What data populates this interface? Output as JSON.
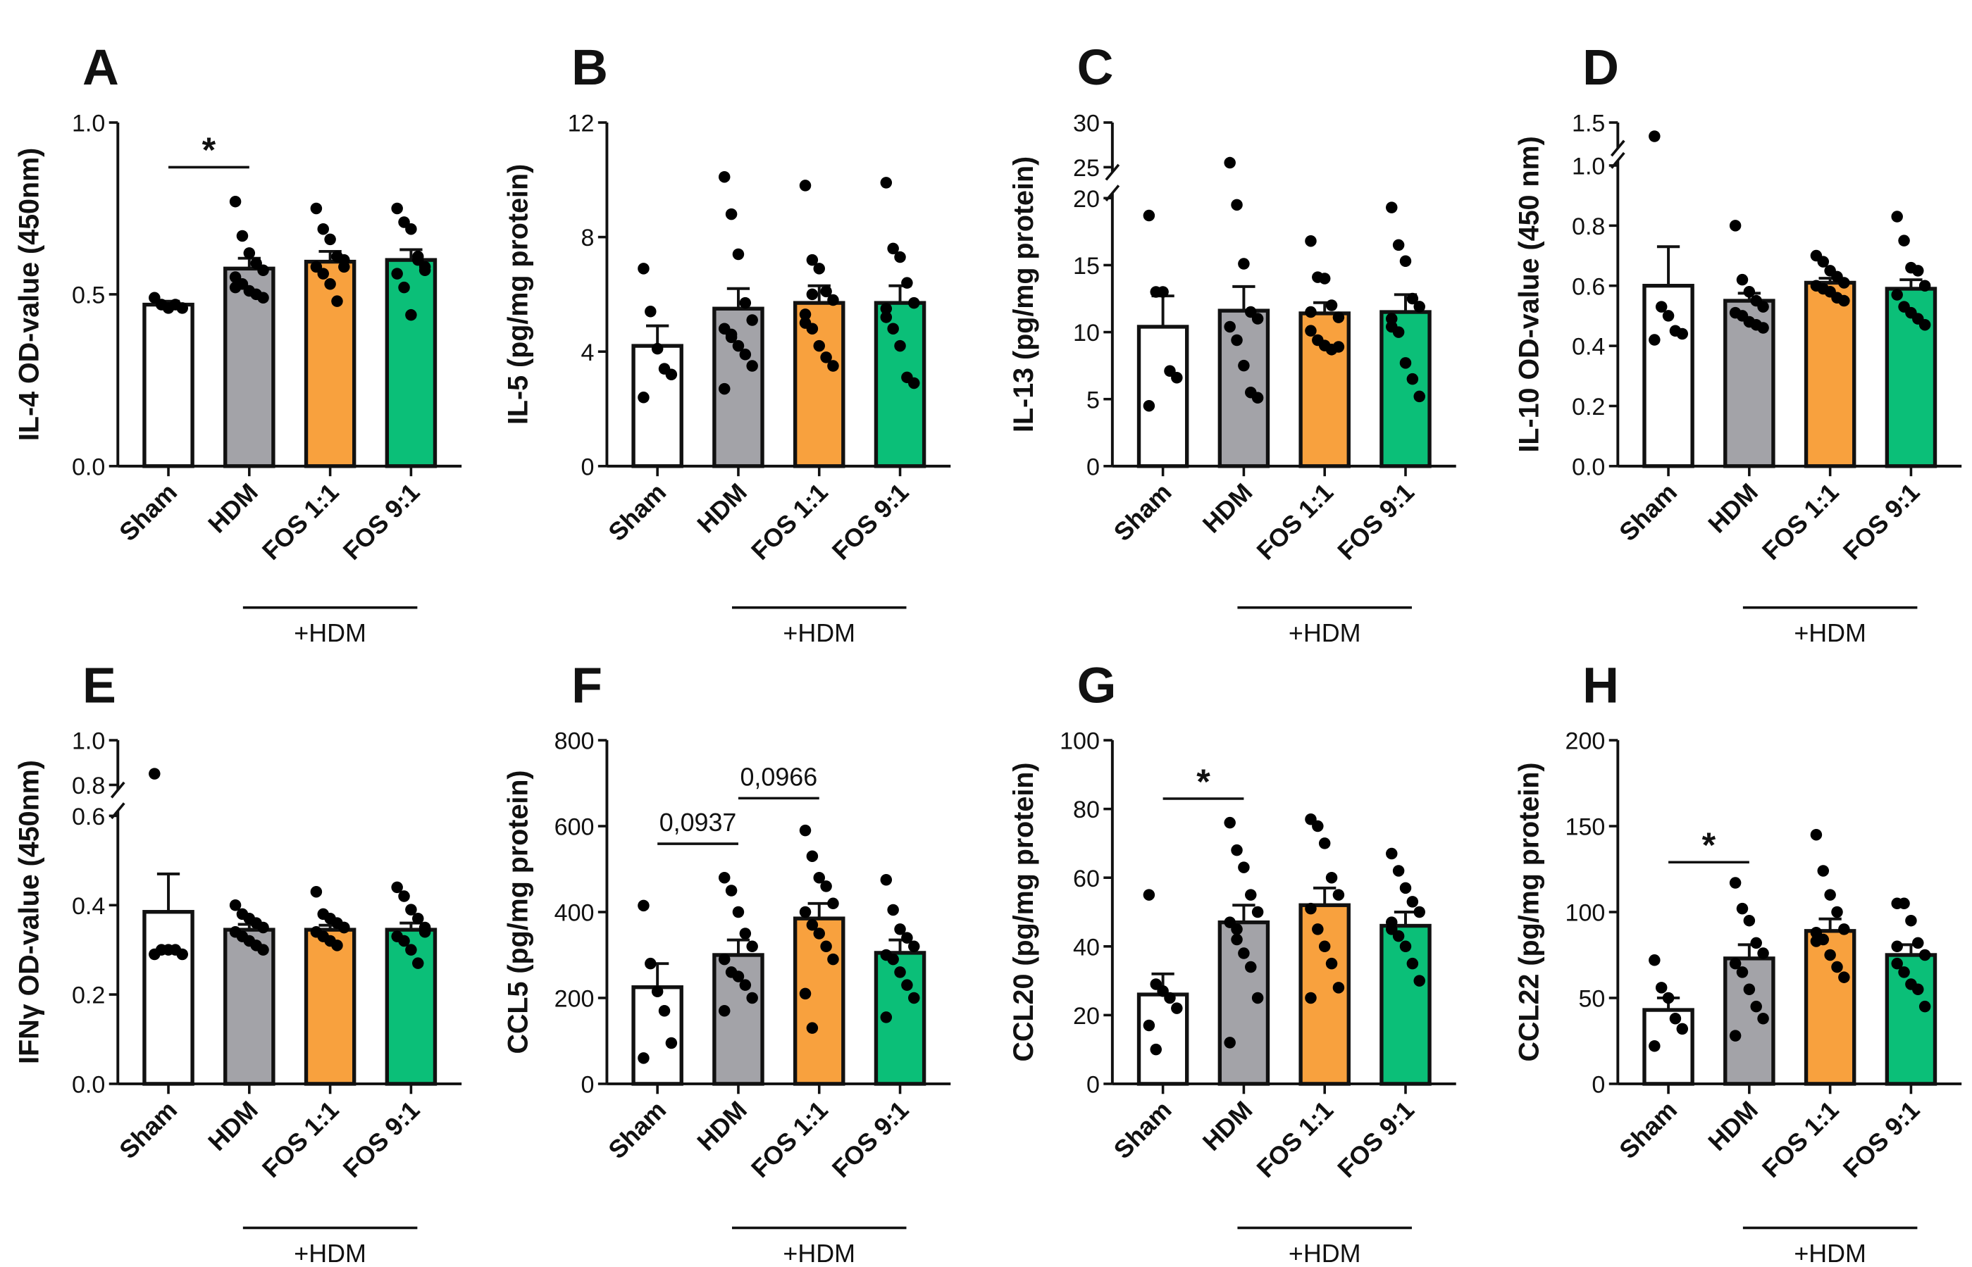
{
  "chart_data": [
    {
      "type": "bar",
      "panel": "A",
      "ylabel": "IL-4 OD-value (450nm)",
      "ylim": [
        0,
        1.0
      ],
      "yticks": [
        "0.0",
        "0.5",
        "1.0"
      ],
      "ytick_values": [
        0,
        0.5,
        1.0
      ],
      "categories": [
        "Sham",
        "HDM",
        "FOS 1:1",
        "FOS 9:1"
      ],
      "group_label": "+HDM",
      "means": [
        0.47,
        0.575,
        0.595,
        0.6
      ],
      "sem": [
        0.01,
        0.03,
        0.03,
        0.03
      ],
      "points": [
        [
          0.49,
          0.47,
          0.46,
          0.47,
          0.46
        ],
        [
          0.77,
          0.67,
          0.62,
          0.59,
          0.57,
          0.55,
          0.53,
          0.51,
          0.5,
          0.49,
          0.52
        ],
        [
          0.75,
          0.69,
          0.66,
          0.61,
          0.6,
          0.58,
          0.56,
          0.53,
          0.48,
          0.58
        ],
        [
          0.75,
          0.71,
          0.69,
          0.61,
          0.58,
          0.56,
          0.52,
          0.44,
          0.6,
          0.57
        ]
      ],
      "annotations": [
        {
          "from": 0,
          "to": 1,
          "y": 0.87,
          "text": "*"
        }
      ]
    },
    {
      "type": "bar",
      "panel": "B",
      "ylabel": "IL-5 (pg/mg protein)",
      "ylim": [
        0,
        12
      ],
      "yticks": [
        "0",
        "4",
        "8",
        "12"
      ],
      "ytick_values": [
        0,
        4,
        8,
        12
      ],
      "categories": [
        "Sham",
        "HDM",
        "FOS 1:1",
        "FOS 9:1"
      ],
      "group_label": "+HDM",
      "means": [
        4.2,
        5.5,
        5.7,
        5.7
      ],
      "sem": [
        0.7,
        0.7,
        0.6,
        0.6
      ],
      "points": [
        [
          6.9,
          5.4,
          4.1,
          3.4,
          3.2,
          2.4
        ],
        [
          10.1,
          8.8,
          7.4,
          5.7,
          5.1,
          4.8,
          4.5,
          4.2,
          3.9,
          3.5,
          2.7,
          4.6
        ],
        [
          9.8,
          7.2,
          6.9,
          6.1,
          5.8,
          5.3,
          4.8,
          4.2,
          3.8,
          3.5,
          5.0,
          6.0
        ],
        [
          9.9,
          7.6,
          7.3,
          6.4,
          5.7,
          5.2,
          4.8,
          4.2,
          3.1,
          2.9,
          5.5
        ]
      ],
      "annotations": []
    },
    {
      "type": "bar",
      "panel": "C",
      "ylabel": "IL-13 (pg/mg protein)",
      "ylim": [
        0,
        30
      ],
      "axis_break": [
        20,
        25
      ],
      "yticks": [
        "0",
        "5",
        "10",
        "15",
        "20",
        "25",
        "30"
      ],
      "ytick_values": [
        0,
        5,
        10,
        15,
        20,
        25,
        30
      ],
      "categories": [
        "Sham",
        "HDM",
        "FOS 1:1",
        "FOS 9:1"
      ],
      "group_label": "+HDM",
      "means": [
        10.4,
        11.6,
        11.4,
        11.5
      ],
      "sem": [
        2.3,
        1.8,
        0.8,
        1.3
      ],
      "points": [
        [
          18.7,
          13.0,
          13.0,
          7.1,
          6.6,
          4.5
        ],
        [
          25.5,
          19.5,
          15.1,
          11.5,
          11.0,
          10.4,
          9.4,
          7.5,
          5.5,
          5.1
        ],
        [
          16.8,
          14.1,
          14.0,
          12.0,
          11.1,
          10.1,
          9.4,
          9.0,
          8.7,
          8.9,
          11.5
        ],
        [
          19.3,
          16.5,
          15.3,
          12.5,
          11.9,
          10.4,
          10.0,
          7.7,
          6.5,
          5.2,
          11.0
        ]
      ],
      "annotations": []
    },
    {
      "type": "bar",
      "panel": "D",
      "ylabel": "IL-10 OD-value (450 nm)",
      "ylim": [
        0,
        1.5
      ],
      "axis_break": [
        1.0,
        1.35
      ],
      "yticks": [
        "0.0",
        "0.2",
        "0.4",
        "0.6",
        "0.8",
        "1.0",
        "1.5"
      ],
      "ytick_values": [
        0,
        0.2,
        0.4,
        0.6,
        0.8,
        1.0,
        1.5
      ],
      "categories": [
        "Sham",
        "HDM",
        "FOS 1:1",
        "FOS 9:1"
      ],
      "group_label": "+HDM",
      "means": [
        0.6,
        0.55,
        0.61,
        0.59
      ],
      "sem": [
        0.13,
        0.025,
        0.015,
        0.03
      ],
      "points": [
        [
          1.4,
          0.53,
          0.5,
          0.45,
          0.44,
          0.42
        ],
        [
          0.8,
          0.62,
          0.58,
          0.55,
          0.53,
          0.51,
          0.5,
          0.48,
          0.47,
          0.46
        ],
        [
          0.7,
          0.68,
          0.65,
          0.63,
          0.61,
          0.6,
          0.59,
          0.58,
          0.56,
          0.55
        ],
        [
          0.83,
          0.75,
          0.66,
          0.65,
          0.6,
          0.57,
          0.53,
          0.51,
          0.49,
          0.47
        ]
      ],
      "annotations": []
    },
    {
      "type": "bar",
      "panel": "E",
      "ylabel": "IFNγ OD-value (450nm)",
      "ylim": [
        0,
        1.0
      ],
      "axis_break": [
        0.6,
        0.8
      ],
      "yticks": [
        "0.0",
        "0.2",
        "0.4",
        "0.6",
        "0.8",
        "1.0"
      ],
      "ytick_values": [
        0,
        0.2,
        0.4,
        0.6,
        0.8,
        1.0
      ],
      "categories": [
        "Sham",
        "HDM",
        "FOS 1:1",
        "FOS 9:1"
      ],
      "group_label": "+HDM",
      "means": [
        0.385,
        0.345,
        0.345,
        0.345
      ],
      "sem": [
        0.085,
        0.012,
        0.01,
        0.015
      ],
      "points": [
        [
          0.85,
          0.3,
          0.3,
          0.3,
          0.29,
          0.29
        ],
        [
          0.4,
          0.38,
          0.37,
          0.36,
          0.35,
          0.34,
          0.33,
          0.32,
          0.31,
          0.3
        ],
        [
          0.43,
          0.38,
          0.37,
          0.36,
          0.35,
          0.34,
          0.33,
          0.32,
          0.31,
          0.35
        ],
        [
          0.44,
          0.42,
          0.39,
          0.37,
          0.35,
          0.33,
          0.32,
          0.3,
          0.27,
          0.34
        ]
      ],
      "annotations": []
    },
    {
      "type": "bar",
      "panel": "F",
      "ylabel": "CCL5 (pg/mg protein)",
      "ylim": [
        0,
        800
      ],
      "yticks": [
        "0",
        "200",
        "400",
        "600",
        "800"
      ],
      "ytick_values": [
        0,
        200,
        400,
        600,
        800
      ],
      "categories": [
        "Sham",
        "HDM",
        "FOS 1:1",
        "FOS 9:1"
      ],
      "group_label": "+HDM",
      "means": [
        225,
        300,
        385,
        305
      ],
      "sem": [
        55,
        35,
        35,
        30
      ],
      "points": [
        [
          415,
          280,
          215,
          170,
          95,
          60
        ],
        [
          480,
          450,
          400,
          350,
          320,
          290,
          260,
          250,
          230,
          200,
          170
        ],
        [
          590,
          530,
          480,
          460,
          420,
          400,
          370,
          350,
          320,
          290,
          210,
          130
        ],
        [
          475,
          405,
          360,
          340,
          320,
          300,
          290,
          260,
          230,
          200,
          155
        ]
      ],
      "annotations": [
        {
          "from": 0,
          "to": 1,
          "y": 559,
          "text": "0,0937"
        },
        {
          "from": 1,
          "to": 2,
          "y": 665,
          "text": "0,0966"
        }
      ]
    },
    {
      "type": "bar",
      "panel": "G",
      "ylabel": "CCL20 (pg/mg protein)",
      "ylim": [
        0,
        100
      ],
      "yticks": [
        "0",
        "20",
        "40",
        "60",
        "80",
        "100"
      ],
      "ytick_values": [
        0,
        20,
        40,
        60,
        80,
        100
      ],
      "categories": [
        "Sham",
        "HDM",
        "FOS 1:1",
        "FOS 9:1"
      ],
      "group_label": "+HDM",
      "means": [
        26,
        47,
        52,
        46
      ],
      "sem": [
        6,
        5,
        5,
        4
      ],
      "points": [
        [
          55,
          29,
          27,
          25,
          22,
          17,
          10
        ],
        [
          76,
          68,
          63,
          55,
          50,
          47,
          42,
          38,
          34,
          25,
          12,
          45
        ],
        [
          77,
          75,
          70,
          60,
          55,
          51,
          45,
          40,
          35,
          28,
          25
        ],
        [
          67,
          62,
          57,
          53,
          50,
          47,
          43,
          40,
          35,
          30,
          45
        ]
      ],
      "annotations": [
        {
          "from": 0,
          "to": 1,
          "y": 83,
          "text": "*"
        }
      ]
    },
    {
      "type": "bar",
      "panel": "H",
      "ylabel": "CCL22 (pg/mg protein)",
      "ylim": [
        0,
        200
      ],
      "yticks": [
        "0",
        "50",
        "100",
        "150",
        "200"
      ],
      "ytick_values": [
        0,
        50,
        100,
        150,
        200
      ],
      "categories": [
        "Sham",
        "HDM",
        "FOS 1:1",
        "FOS 9:1"
      ],
      "group_label": "+HDM",
      "means": [
        43,
        73,
        89,
        75
      ],
      "sem": [
        7,
        8,
        7,
        6
      ],
      "points": [
        [
          72,
          56,
          50,
          38,
          32,
          22
        ],
        [
          117,
          102,
          95,
          82,
          76,
          70,
          65,
          55,
          45,
          38,
          28
        ],
        [
          145,
          124,
          110,
          100,
          90,
          88,
          84,
          75,
          68,
          62,
          83
        ],
        [
          105,
          105,
          95,
          82,
          75,
          70,
          65,
          58,
          55,
          45,
          80
        ]
      ],
      "annotations": [
        {
          "from": 0,
          "to": 1,
          "y": 129,
          "text": "*"
        }
      ]
    }
  ],
  "colors": {
    "Sham": "#ffffff",
    "HDM": "#a3a3a8",
    "FOS 1:1": "#f8a13e",
    "FOS 9:1": "#0bbf78"
  }
}
